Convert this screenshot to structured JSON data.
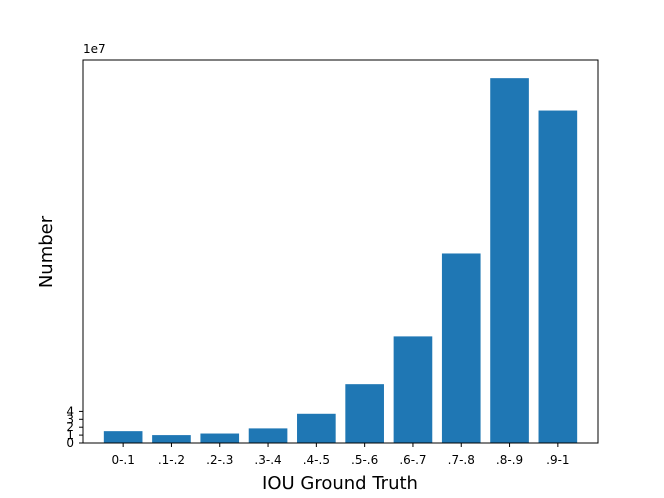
{
  "chart_data": {
    "type": "bar",
    "categories": [
      "0-.1",
      ".1-.2",
      ".2-.3",
      ".3-.4",
      ".4-.5",
      ".5-.6",
      ".6-.7",
      ".7-.8",
      ".8-.9",
      ".9-1"
    ],
    "values": [
      15000000,
      10000000,
      12000000,
      18500000,
      37000000,
      74500000,
      135000000,
      240000000,
      462000000,
      421000000
    ],
    "title": "",
    "xlabel": "IOU Ground Truth",
    "ylabel": "Number",
    "y_multiplier_label": "1e7",
    "y_ticks": [
      0,
      10000000,
      20000000,
      30000000,
      40000000
    ],
    "y_tick_labels": [
      "0",
      "1",
      "2",
      "3",
      "4"
    ],
    "ylim": [
      0,
      485000000
    ],
    "grid": false,
    "bar_color": "#1f77b4"
  }
}
